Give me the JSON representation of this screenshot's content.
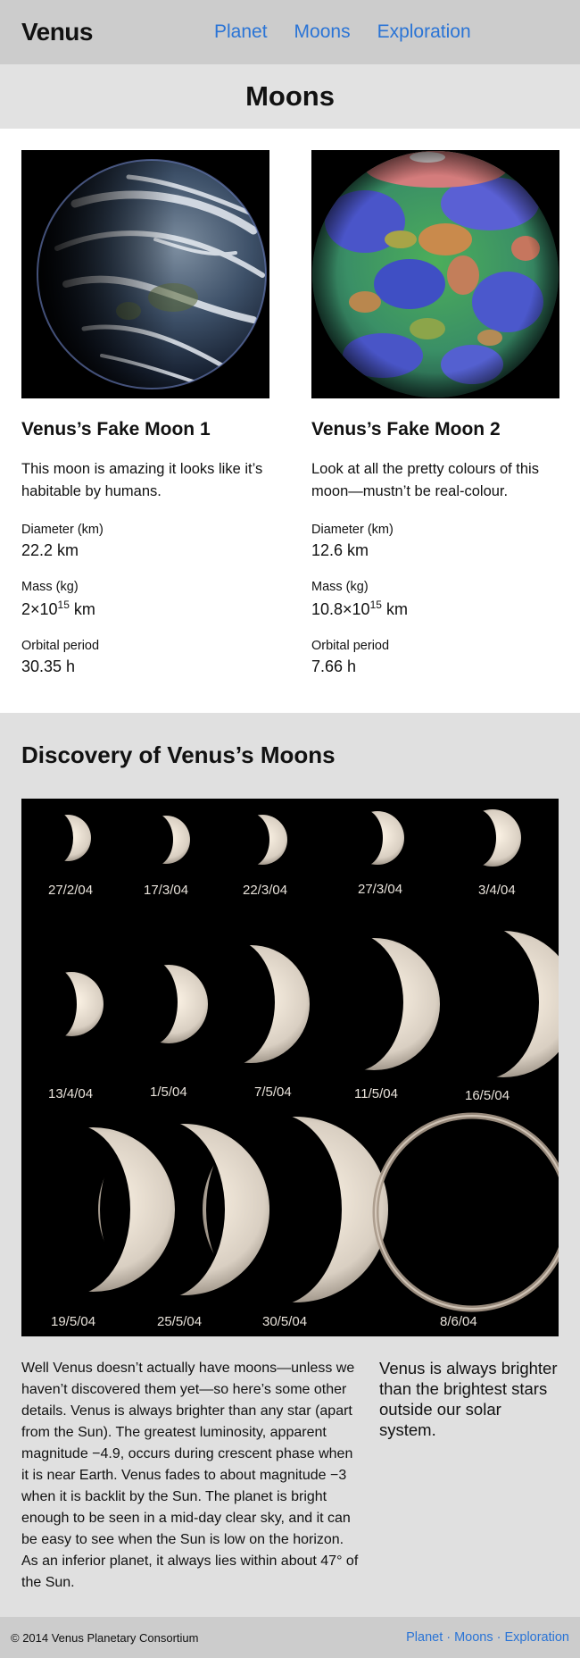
{
  "header": {
    "brand": "Venus",
    "nav": [
      "Planet",
      "Moons",
      "Exploration"
    ]
  },
  "page_title": "Moons",
  "moons": [
    {
      "name": "Venus’s Fake Moon 1",
      "description": "This moon is amazing it looks like it’s habitable by humans.",
      "diameter_label": "Diameter (km)",
      "diameter_value": "22.2 km",
      "mass_label": "Mass (kg)",
      "mass_base": "2×10",
      "mass_exp": "15",
      "mass_unit": " km",
      "orbit_label": "Orbital period",
      "orbit_value": "30.35 h",
      "image": "earth-like-globe-icon"
    },
    {
      "name": "Venus’s Fake Moon 2",
      "description": "Look at all the pretty colours of this moon—mustn’t be real-colour.",
      "diameter_label": "Diameter (km)",
      "diameter_value": "12.6 km",
      "mass_label": "Mass (kg)",
      "mass_base": "10.8×10",
      "mass_exp": "15",
      "mass_unit": " km",
      "orbit_label": "Orbital period",
      "orbit_value": "7.66 h",
      "image": "false-colour-globe-icon"
    }
  ],
  "discovery": {
    "heading": "Discovery of Venus’s Moons",
    "phase_dates": [
      "27/2/04",
      "17/3/04",
      "22/3/04",
      "27/3/04",
      "3/4/04",
      "13/4/04",
      "1/5/04",
      "7/5/04",
      "11/5/04",
      "16/5/04",
      "19/5/04",
      "25/5/04",
      "30/5/04",
      "8/6/04"
    ],
    "body": "Well Venus doesn’t actually have moons—unless we haven’t discovered them yet—so here’s some other details. Venus is always brighter than any star (apart from the Sun). The greatest luminosity, apparent magnitude −4.9, occurs during crescent phase when it is near Earth. Venus fades to about magnitude −3 when it is backlit by the Sun. The planet is bright enough to be seen in a mid-day clear sky, and it can be easy to see when the Sun is low on the horizon. As an inferior planet, it always lies within about 47° of the Sun.",
    "pull_quote": "Venus is always brighter than the brightest stars outside our solar system."
  },
  "footer": {
    "copyright": "© 2014 Venus Planetary Consortium",
    "links": [
      "Planet",
      "Moons",
      "Exploration"
    ],
    "separator": "·"
  }
}
